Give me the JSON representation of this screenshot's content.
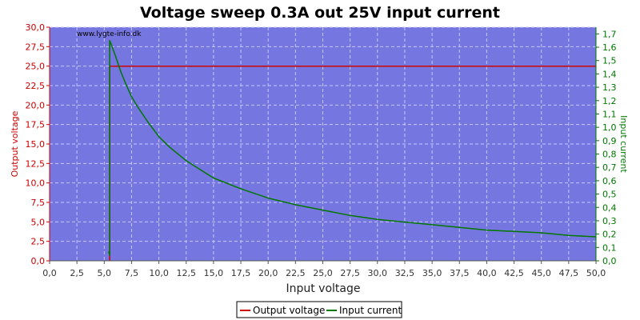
{
  "chart_data": {
    "type": "line",
    "title": "Voltage sweep 0.3A out 25V input current",
    "xlabel": "Input voltage",
    "ylabel_left": "Output voltage",
    "ylabel_right": "Input current",
    "watermark": "www.lygte-info.dk",
    "xlim": [
      0,
      50
    ],
    "ylim_left": [
      0,
      30
    ],
    "ylim_right": [
      0,
      1.75
    ],
    "x_ticks": [
      "0,0",
      "2,5",
      "5,0",
      "7,5",
      "10,0",
      "12,5",
      "15,0",
      "17,5",
      "20,0",
      "22,5",
      "25,0",
      "27,5",
      "30,0",
      "32,5",
      "35,0",
      "37,5",
      "40,0",
      "42,5",
      "45,0",
      "47,5",
      "50,0"
    ],
    "y_left_ticks": [
      "0,0",
      "2,5",
      "5,0",
      "7,5",
      "10,0",
      "12,5",
      "15,0",
      "17,5",
      "20,0",
      "22,5",
      "25,0",
      "27,5",
      "30,0"
    ],
    "y_right_ticks": [
      "0,0",
      "0,1",
      "0,2",
      "0,3",
      "0,4",
      "0,5",
      "0,6",
      "0,7",
      "0,8",
      "0,9",
      "1,0",
      "1,1",
      "1,2",
      "1,3",
      "1,4",
      "1,5",
      "1,6",
      "1,7"
    ],
    "grid": true,
    "legend_position": "bottom-center",
    "colors": {
      "plot_bg": "#7676e0",
      "output_voltage": "#cc0000",
      "input_current": "#007700",
      "left_axis": "#cc0000",
      "right_axis": "#007700"
    },
    "series": [
      {
        "name": "Output voltage",
        "axis": "left",
        "x": [
          5.5,
          5.5,
          50.0
        ],
        "y": [
          0.0,
          25.0,
          25.0
        ]
      },
      {
        "name": "Input current",
        "axis": "right",
        "x": [
          5.4,
          5.5,
          5.5,
          5.6,
          6.0,
          6.5,
          7.0,
          7.5,
          8.0,
          9.0,
          10.0,
          11.0,
          12.5,
          15.0,
          17.5,
          20.0,
          22.5,
          25.0,
          27.5,
          30.0,
          32.5,
          35.0,
          37.5,
          40.0,
          42.5,
          45.0,
          47.5,
          50.0
        ],
        "y": [
          0.07,
          0.04,
          1.65,
          1.63,
          1.54,
          1.42,
          1.32,
          1.23,
          1.16,
          1.04,
          0.93,
          0.85,
          0.75,
          0.62,
          0.54,
          0.47,
          0.42,
          0.38,
          0.34,
          0.31,
          0.29,
          0.27,
          0.25,
          0.23,
          0.22,
          0.21,
          0.19,
          0.18
        ]
      }
    ]
  }
}
